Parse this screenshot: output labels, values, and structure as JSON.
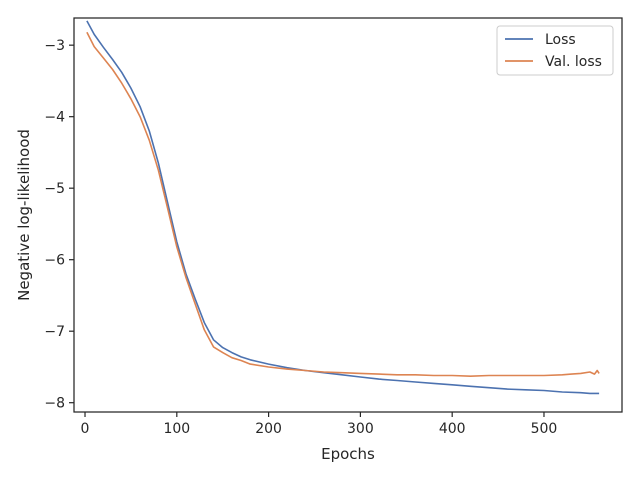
{
  "chart_data": {
    "type": "line",
    "title": "",
    "xlabel": "Epochs",
    "ylabel": "Negative log-likelihood",
    "xlim": [
      -12,
      585
    ],
    "ylim": [
      -8.13,
      -2.62
    ],
    "xticks": [
      0,
      100,
      200,
      300,
      400,
      500
    ],
    "yticks": [
      -8,
      -7,
      -6,
      -5,
      -4,
      -3
    ],
    "xtick_labels": [
      "0",
      "100",
      "200",
      "300",
      "400",
      "500"
    ],
    "ytick_labels": [
      "−8",
      "−7",
      "−6",
      "−5",
      "−4",
      "−3"
    ],
    "grid": false,
    "legend_position": "top-right",
    "series": [
      {
        "name": "Loss",
        "color": "#4c72b0",
        "points": [
          [
            2,
            -2.66
          ],
          [
            10,
            -2.85
          ],
          [
            20,
            -3.03
          ],
          [
            30,
            -3.2
          ],
          [
            40,
            -3.38
          ],
          [
            50,
            -3.6
          ],
          [
            60,
            -3.86
          ],
          [
            70,
            -4.2
          ],
          [
            80,
            -4.65
          ],
          [
            90,
            -5.2
          ],
          [
            100,
            -5.75
          ],
          [
            110,
            -6.2
          ],
          [
            120,
            -6.55
          ],
          [
            130,
            -6.88
          ],
          [
            140,
            -7.12
          ],
          [
            150,
            -7.23
          ],
          [
            160,
            -7.3
          ],
          [
            170,
            -7.36
          ],
          [
            180,
            -7.4
          ],
          [
            200,
            -7.46
          ],
          [
            220,
            -7.51
          ],
          [
            240,
            -7.55
          ],
          [
            260,
            -7.58
          ],
          [
            280,
            -7.61
          ],
          [
            300,
            -7.64
          ],
          [
            320,
            -7.67
          ],
          [
            340,
            -7.69
          ],
          [
            360,
            -7.71
          ],
          [
            380,
            -7.73
          ],
          [
            400,
            -7.75
          ],
          [
            420,
            -7.77
          ],
          [
            440,
            -7.79
          ],
          [
            460,
            -7.81
          ],
          [
            480,
            -7.82
          ],
          [
            500,
            -7.83
          ],
          [
            520,
            -7.85
          ],
          [
            540,
            -7.86
          ],
          [
            550,
            -7.87
          ],
          [
            560,
            -7.87
          ]
        ]
      },
      {
        "name": "Val. loss",
        "color": "#dd8452",
        "points": [
          [
            2,
            -2.82
          ],
          [
            10,
            -3.02
          ],
          [
            20,
            -3.18
          ],
          [
            30,
            -3.34
          ],
          [
            40,
            -3.53
          ],
          [
            50,
            -3.75
          ],
          [
            60,
            -4.0
          ],
          [
            70,
            -4.33
          ],
          [
            80,
            -4.75
          ],
          [
            90,
            -5.28
          ],
          [
            100,
            -5.82
          ],
          [
            110,
            -6.25
          ],
          [
            120,
            -6.62
          ],
          [
            130,
            -6.98
          ],
          [
            140,
            -7.22
          ],
          [
            150,
            -7.3
          ],
          [
            160,
            -7.37
          ],
          [
            170,
            -7.41
          ],
          [
            180,
            -7.46
          ],
          [
            200,
            -7.5
          ],
          [
            220,
            -7.53
          ],
          [
            240,
            -7.55
          ],
          [
            260,
            -7.57
          ],
          [
            280,
            -7.58
          ],
          [
            300,
            -7.59
          ],
          [
            320,
            -7.6
          ],
          [
            340,
            -7.61
          ],
          [
            360,
            -7.61
          ],
          [
            380,
            -7.62
          ],
          [
            400,
            -7.62
          ],
          [
            420,
            -7.63
          ],
          [
            440,
            -7.62
          ],
          [
            460,
            -7.62
          ],
          [
            480,
            -7.62
          ],
          [
            500,
            -7.62
          ],
          [
            520,
            -7.61
          ],
          [
            530,
            -7.6
          ],
          [
            540,
            -7.59
          ],
          [
            550,
            -7.57
          ],
          [
            555,
            -7.6
          ],
          [
            558,
            -7.55
          ],
          [
            560,
            -7.59
          ]
        ]
      }
    ]
  }
}
